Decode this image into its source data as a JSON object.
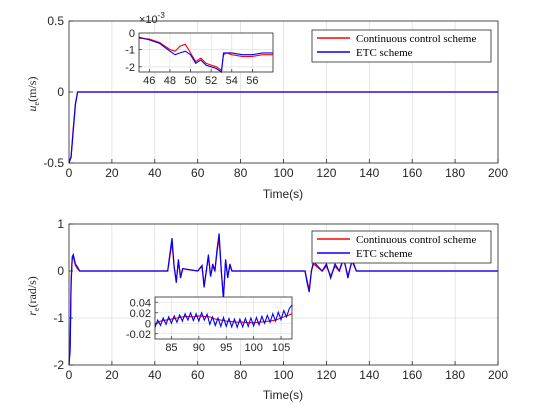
{
  "chart_data": [
    {
      "type": "line",
      "xlabel": "Time(s)",
      "ylabel": "u_e(m/s)",
      "ylabel_main": "u",
      "ylabel_sub": "e",
      "ylabel_unit": "(m/s)",
      "xlim": [
        0,
        200
      ],
      "ylim": [
        -0.5,
        0.5
      ],
      "xticks": [
        "0",
        "20",
        "40",
        "60",
        "80",
        "100",
        "120",
        "140",
        "160",
        "180",
        "200"
      ],
      "yticks": [
        "-0.5",
        "0",
        "0.5"
      ],
      "grid": true,
      "legend_position": "top-right",
      "series": [
        {
          "name": "Continuous control scheme",
          "color": "#ff0000",
          "x": [
            0,
            1,
            2,
            3,
            4,
            5,
            8,
            20,
            60,
            100,
            140,
            180,
            200
          ],
          "y": [
            -0.5,
            -0.45,
            -0.25,
            -0.08,
            0.0,
            0.0,
            0.0,
            0.0,
            0.0,
            0.0,
            0.0,
            0.0,
            0.0
          ]
        },
        {
          "name": "ETC scheme",
          "color": "#0000ff",
          "x": [
            0,
            1,
            2,
            3,
            4,
            5,
            8,
            20,
            60,
            100,
            140,
            180,
            200
          ],
          "y": [
            -0.5,
            -0.46,
            -0.27,
            -0.09,
            0.0,
            0.0,
            0.0,
            0.0,
            0.0,
            0.0,
            0.0,
            0.0,
            0.0
          ]
        }
      ],
      "inset": {
        "xlim": [
          45,
          58
        ],
        "ylim": [
          -0.0023,
          -5e-05
        ],
        "xticks": [
          46,
          48,
          50,
          52,
          54,
          56
        ],
        "yticks": [
          -1,
          -2
        ],
        "yticks_labels": [
          "-1",
          "-2"
        ],
        "extra_ytick_label": "0",
        "exponent_label": "×10",
        "exponent_power": "-3",
        "series": [
          {
            "name": "Continuous control scheme",
            "color": "#ff0000",
            "x": [
              45,
              46,
              47,
              48,
              48.5,
              49,
              49.5,
              50,
              50.5,
              51,
              51.5,
              52,
              52.5,
              53,
              53.2,
              53.5,
              54,
              55,
              56,
              57,
              58
            ],
            "y": [
              -0.00035,
              -0.0004,
              -0.0006,
              -0.001,
              -0.0011,
              -0.0008,
              -0.0007,
              -0.0012,
              -0.0017,
              -0.0015,
              -0.0018,
              -0.0019,
              -0.002,
              -0.0022,
              -0.0013,
              -0.0012,
              -0.0013,
              -0.0014,
              -0.0014,
              -0.0013,
              -0.0013
            ]
          },
          {
            "name": "ETC scheme",
            "color": "#0000ff",
            "x": [
              45,
              46,
              47,
              48,
              48.5,
              49,
              49.5,
              50,
              50.5,
              51,
              51.5,
              52,
              52.5,
              53,
              53.2,
              53.5,
              54,
              55,
              56,
              57,
              58
            ],
            "y": [
              -0.0003,
              -0.00045,
              -0.00065,
              -0.0011,
              -0.0013,
              -0.0012,
              -0.0011,
              -0.0013,
              -0.0018,
              -0.0016,
              -0.0019,
              -0.002,
              -0.0021,
              -0.0023,
              -0.0012,
              -0.0012,
              -0.0012,
              -0.0013,
              -0.0013,
              -0.0012,
              -0.0012
            ]
          }
        ]
      }
    },
    {
      "type": "line",
      "xlabel": "Time(s)",
      "ylabel": "r_e(rad/s)",
      "ylabel_main": "r",
      "ylabel_sub": "e",
      "ylabel_unit": "(rad/s)",
      "xlim": [
        0,
        200
      ],
      "ylim": [
        -2,
        1
      ],
      "xticks": [
        "0",
        "20",
        "40",
        "60",
        "80",
        "100",
        "120",
        "140",
        "160",
        "180",
        "200"
      ],
      "yticks": [
        "-2",
        "-1",
        "0",
        "1"
      ],
      "grid": true,
      "legend_position": "top-right",
      "series": [
        {
          "name": "Continuous control scheme",
          "color": "#ff0000",
          "x": [
            0,
            0.5,
            1,
            1.5,
            2,
            3,
            4,
            5,
            45,
            46,
            47,
            48,
            49,
            50,
            51,
            52,
            53,
            60,
            62,
            63,
            64,
            65,
            66,
            67,
            68,
            69,
            70,
            71,
            72,
            73,
            74,
            75,
            76,
            80,
            110,
            111,
            112,
            113,
            114,
            118,
            120,
            122,
            124,
            126,
            128,
            130,
            132,
            134,
            140,
            160,
            180,
            200
          ],
          "y": [
            -2,
            -1.6,
            -0.2,
            0.25,
            0.3,
            0.12,
            0.05,
            0.0,
            0.0,
            0.0,
            0.3,
            0.6,
            0.1,
            -0.2,
            0.2,
            -0.1,
            0.05,
            0.0,
            0.1,
            -0.3,
            0.0,
            0.3,
            -0.1,
            0.1,
            0.0,
            0.4,
            0.7,
            0.0,
            -0.55,
            0.2,
            -0.1,
            0.1,
            0.0,
            0.0,
            0.0,
            -0.2,
            -0.4,
            0.0,
            0.15,
            0.0,
            0.1,
            -0.1,
            0.1,
            0.0,
            0.25,
            -0.1,
            0.2,
            0.0,
            0.0,
            0.0,
            0.0,
            0.0
          ]
        },
        {
          "name": "ETC scheme",
          "color": "#0000ff",
          "x": [
            0,
            0.5,
            1,
            1.5,
            2,
            3,
            4,
            5,
            45,
            46,
            47,
            48,
            49,
            50,
            51,
            52,
            53,
            60,
            62,
            63,
            64,
            65,
            66,
            67,
            68,
            69,
            70,
            71,
            72,
            73,
            74,
            75,
            76,
            80,
            110,
            111,
            112,
            113,
            114,
            118,
            120,
            122,
            124,
            126,
            128,
            130,
            132,
            134,
            140,
            160,
            180,
            200
          ],
          "y": [
            -2,
            -1.7,
            -0.3,
            0.3,
            0.35,
            0.15,
            0.08,
            0.0,
            0.0,
            0.0,
            0.35,
            0.7,
            0.1,
            -0.25,
            0.25,
            -0.15,
            0.05,
            0.0,
            0.12,
            -0.35,
            0.0,
            0.35,
            -0.12,
            0.15,
            0.0,
            0.45,
            0.8,
            0.0,
            -0.6,
            0.25,
            -0.15,
            0.15,
            0.0,
            0.0,
            0.0,
            -0.25,
            -0.45,
            0.0,
            0.2,
            0.0,
            0.15,
            -0.15,
            0.15,
            0.0,
            0.3,
            -0.15,
            0.25,
            0.0,
            0.0,
            0.0,
            0.0,
            0.0
          ]
        }
      ],
      "inset": {
        "xlim": [
          82,
          107
        ],
        "ylim": [
          -0.03,
          0.05
        ],
        "xticks": [
          85,
          90,
          95,
          100,
          105
        ],
        "yticks": [
          0.04,
          0.02,
          0,
          -0.02
        ],
        "yticks_labels": [
          "0.04",
          "0.02",
          "0",
          "-0.02"
        ],
        "series": [
          {
            "name": "Continuous control scheme",
            "color": "#ff0000",
            "x": [
              82,
              83,
              84,
              85,
              86,
              87,
              88,
              89,
              90,
              91,
              92,
              93,
              94,
              95,
              96,
              97,
              98,
              99,
              100,
              101,
              102,
              103,
              104,
              105,
              106,
              107
            ],
            "y": [
              -0.002,
              0.004,
              0.006,
              0.008,
              0.01,
              0.012,
              0.013,
              0.012,
              0.014,
              0.013,
              0.012,
              0.008,
              0.006,
              0.004,
              0.003,
              0.002,
              0.002,
              0.001,
              0.001,
              0.002,
              0.003,
              0.004,
              0.006,
              0.01,
              0.014,
              0.018
            ]
          },
          {
            "name": "ETC scheme",
            "color": "#0000ff",
            "x": [
              82,
              82.5,
              83,
              83.5,
              84,
              84.5,
              85,
              85.5,
              86,
              86.5,
              87,
              87.5,
              88,
              88.5,
              89,
              89.5,
              90,
              90.5,
              91,
              91.5,
              92,
              92.5,
              93,
              93.5,
              94,
              94.5,
              95,
              95.5,
              96,
              96.5,
              97,
              97.5,
              98,
              98.5,
              99,
              99.5,
              100,
              100.5,
              101,
              101.5,
              102,
              102.5,
              103,
              103.5,
              104,
              104.5,
              105,
              105.5,
              106,
              106.5,
              107
            ],
            "y": [
              -0.008,
              0.006,
              -0.004,
              0.01,
              -0.002,
              0.012,
              0.0,
              0.014,
              0.002,
              0.016,
              0.004,
              0.018,
              0.006,
              0.02,
              0.005,
              0.018,
              0.004,
              0.02,
              0.006,
              0.017,
              -0.002,
              0.012,
              -0.004,
              0.01,
              -0.006,
              0.011,
              -0.006,
              0.009,
              -0.007,
              0.008,
              -0.008,
              0.008,
              -0.007,
              0.009,
              -0.006,
              0.01,
              -0.005,
              0.011,
              -0.003,
              0.013,
              0.0,
              0.015,
              0.002,
              0.018,
              0.004,
              0.021,
              0.007,
              0.024,
              0.012,
              0.028,
              0.035
            ]
          }
        ]
      }
    }
  ]
}
